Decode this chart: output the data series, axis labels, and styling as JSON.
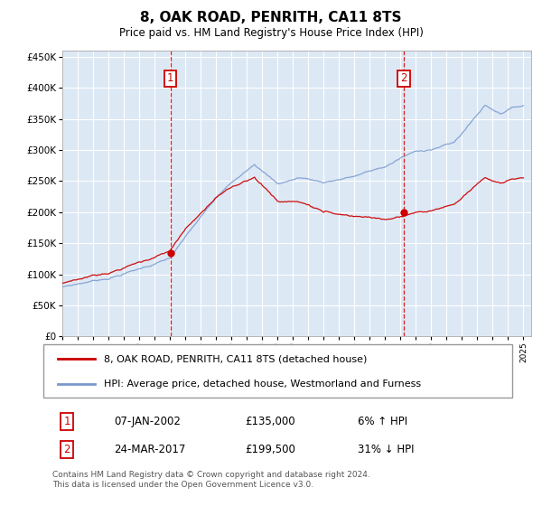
{
  "title": "8, OAK ROAD, PENRITH, CA11 8TS",
  "subtitle": "Price paid vs. HM Land Registry's House Price Index (HPI)",
  "legend_line1": "8, OAK ROAD, PENRITH, CA11 8TS (detached house)",
  "legend_line2": "HPI: Average price, detached house, Westmorland and Furness",
  "ann1_date": "07-JAN-2002",
  "ann1_price": "£135,000",
  "ann1_hpi": "6% ↑ HPI",
  "ann2_date": "24-MAR-2017",
  "ann2_price": "£199,500",
  "ann2_hpi": "31% ↓ HPI",
  "footer": "Contains HM Land Registry data © Crown copyright and database right 2024.\nThis data is licensed under the Open Government Licence v3.0.",
  "sale1_year": 2002.04,
  "sale1_price": 135000,
  "sale2_year": 2017.21,
  "sale2_price": 199500,
  "ylim": [
    0,
    460000
  ],
  "yticks": [
    0,
    50000,
    100000,
    150000,
    200000,
    250000,
    300000,
    350000,
    400000,
    450000
  ],
  "line_color_red": "#cc0000",
  "line_color_blue": "#7799cc",
  "bg_color": "#dde8f5",
  "grid_color": "#ffffff",
  "vline_color": "#cc0000",
  "box_color": "#cc0000"
}
